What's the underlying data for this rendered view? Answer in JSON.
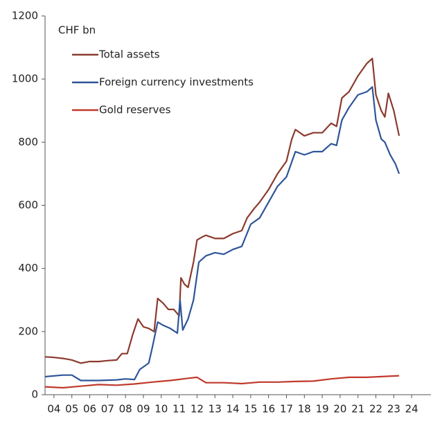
{
  "chart_data": {
    "type": "line",
    "unit_label": "CHF bn",
    "series": [
      {
        "name": "Total assets",
        "color": "#8b3a2e",
        "x": [
          2004.0,
          2004.5,
          2005.0,
          2005.5,
          2006.0,
          2006.5,
          2007.0,
          2007.5,
          2008.0,
          2008.3,
          2008.6,
          2008.9,
          2009.2,
          2009.5,
          2009.8,
          2010.1,
          2010.3,
          2010.6,
          2010.9,
          2011.2,
          2011.5,
          2011.6,
          2011.8,
          2012.0,
          2012.3,
          2012.5,
          2012.8,
          2013.0,
          2013.5,
          2014.0,
          2014.5,
          2015.0,
          2015.3,
          2015.7,
          2016.0,
          2016.5,
          2017.0,
          2017.5,
          2017.8,
          2018.0,
          2018.5,
          2019.0,
          2019.5,
          2020.0,
          2020.3,
          2020.6,
          2021.0,
          2021.5,
          2022.0,
          2022.3,
          2022.5,
          2022.8,
          2023.0,
          2023.2,
          2023.5,
          2023.8
        ],
        "values": [
          120,
          118,
          115,
          110,
          100,
          105,
          105,
          108,
          110,
          130,
          130,
          190,
          240,
          215,
          210,
          200,
          305,
          290,
          270,
          270,
          250,
          370,
          350,
          340,
          420,
          490,
          500,
          505,
          495,
          495,
          510,
          520,
          560,
          590,
          610,
          650,
          700,
          740,
          810,
          840,
          820,
          830,
          830,
          860,
          850,
          940,
          960,
          1010,
          1050,
          1065,
          950,
          900,
          880,
          955,
          900,
          820
        ]
      },
      {
        "name": "Foreign currency investments",
        "color": "#2e5597",
        "x": [
          2004.0,
          2005.0,
          2005.5,
          2006.0,
          2007.0,
          2008.0,
          2008.5,
          2009.0,
          2009.3,
          2009.8,
          2010.0,
          2010.3,
          2010.6,
          2011.0,
          2011.4,
          2011.55,
          2011.7,
          2012.0,
          2012.3,
          2012.6,
          2013.0,
          2013.5,
          2014.0,
          2014.5,
          2015.0,
          2015.5,
          2016.0,
          2016.5,
          2017.0,
          2017.5,
          2018.0,
          2018.5,
          2019.0,
          2019.5,
          2020.0,
          2020.3,
          2020.6,
          2021.0,
          2021.5,
          2022.0,
          2022.3,
          2022.5,
          2022.8,
          2023.0,
          2023.3,
          2023.6,
          2023.8
        ],
        "values": [
          57,
          62,
          62,
          45,
          45,
          47,
          50,
          48,
          80,
          100,
          150,
          230,
          220,
          210,
          195,
          300,
          205,
          240,
          300,
          420,
          440,
          450,
          445,
          460,
          470,
          540,
          560,
          610,
          660,
          690,
          770,
          760,
          770,
          770,
          795,
          790,
          870,
          910,
          950,
          960,
          975,
          870,
          810,
          800,
          760,
          730,
          700
        ]
      },
      {
        "name": "Gold reserves",
        "color": "#c0392b",
        "x": [
          2004.0,
          2005.0,
          2006.0,
          2007.0,
          2008.0,
          2009.0,
          2010.0,
          2011.0,
          2012.0,
          2012.5,
          2013.0,
          2014.0,
          2015.0,
          2016.0,
          2017.0,
          2018.0,
          2019.0,
          2020.0,
          2021.0,
          2022.0,
          2023.0,
          2023.8
        ],
        "values": [
          25,
          22,
          27,
          32,
          30,
          34,
          40,
          45,
          52,
          55,
          38,
          38,
          35,
          40,
          40,
          42,
          43,
          50,
          55,
          55,
          58,
          60
        ]
      }
    ],
    "xlim": [
      2004,
      2025.5
    ],
    "xticks": [
      {
        "value": 2004.5,
        "label": "04"
      },
      {
        "value": 2005.5,
        "label": "05"
      },
      {
        "value": 2006.5,
        "label": "06"
      },
      {
        "value": 2007.5,
        "label": "07"
      },
      {
        "value": 2008.5,
        "label": "08"
      },
      {
        "value": 2009.5,
        "label": "09"
      },
      {
        "value": 2010.5,
        "label": "10"
      },
      {
        "value": 2011.5,
        "label": "11"
      },
      {
        "value": 2012.5,
        "label": "12"
      },
      {
        "value": 2013.5,
        "label": "13"
      },
      {
        "value": 2014.5,
        "label": "14"
      },
      {
        "value": 2015.5,
        "label": "15"
      },
      {
        "value": 2016.5,
        "label": "16"
      },
      {
        "value": 2017.5,
        "label": "17"
      },
      {
        "value": 2018.5,
        "label": "18"
      },
      {
        "value": 2019.5,
        "label": "19"
      },
      {
        "value": 2020.5,
        "label": "20"
      },
      {
        "value": 2021.5,
        "label": "21"
      },
      {
        "value": 2022.5,
        "label": "22"
      },
      {
        "value": 2023.5,
        "label": "23"
      },
      {
        "value": 2024.5,
        "label": "24"
      }
    ],
    "ylim": [
      0,
      1200
    ],
    "yticks": [
      0,
      200,
      400,
      600,
      800,
      1000,
      1200
    ],
    "grid": false
  }
}
